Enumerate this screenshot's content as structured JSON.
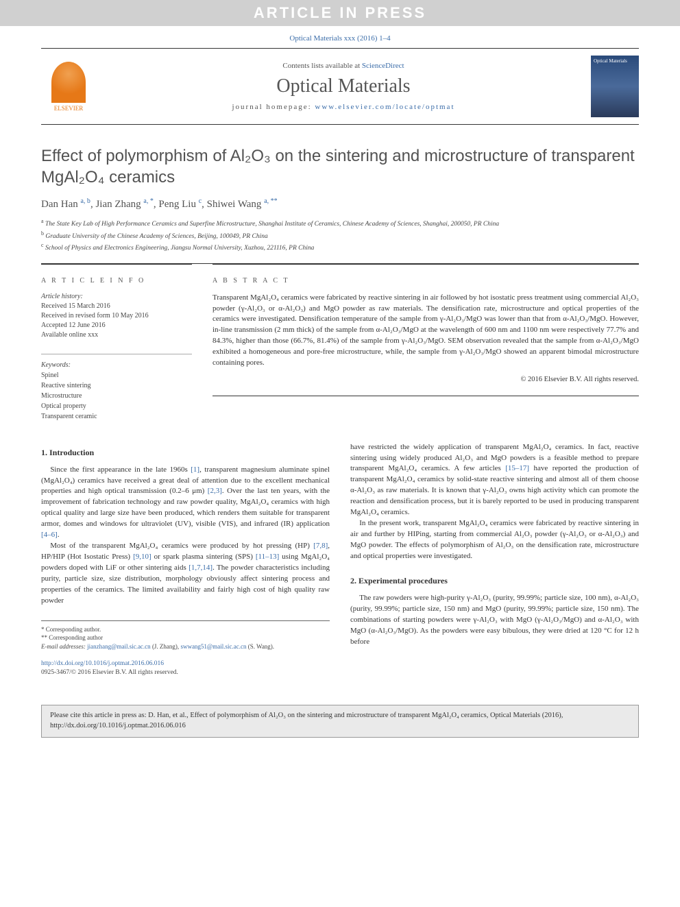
{
  "banner": "ARTICLE IN PRESS",
  "citation_line": "Optical Materials xxx (2016) 1–4",
  "header": {
    "contents_prefix": "Contents lists available at ",
    "contents_link": "ScienceDirect",
    "journal_name": "Optical Materials",
    "homepage_prefix": "journal homepage: ",
    "homepage_link": "www.elsevier.com/locate/optmat",
    "publisher": "ELSEVIER",
    "cover_text": "Optical Materials"
  },
  "title": "Effect of polymorphism of Al₂O₃ on the sintering and microstructure of transparent MgAl₂O₄ ceramics",
  "authors_html": "Dan Han <sup>a, b</sup>, Jian Zhang <sup>a, *</sup>, Peng Liu <sup>c</sup>, Shiwei Wang <sup>a, **</sup>",
  "affiliations": {
    "a": "The State Key Lab of High Performance Ceramics and Superfine Microstructure, Shanghai Institute of Ceramics, Chinese Academy of Sciences, Shanghai, 200050, PR China",
    "b": "Graduate University of the Chinese Academy of Sciences, Beijing, 100049, PR China",
    "c": "School of Physics and Electronics Engineering, Jiangsu Normal University, Xuzhou, 221116, PR China"
  },
  "info": {
    "section_label": "A R T I C L E  I N F O",
    "history_label": "Article history:",
    "received": "Received 15 March 2016",
    "revised": "Received in revised form 10 May 2016",
    "accepted": "Accepted 12 June 2016",
    "online": "Available online xxx",
    "keywords_label": "Keywords:",
    "keywords": [
      "Spinel",
      "Reactive sintering",
      "Microstructure",
      "Optical property",
      "Transparent ceramic"
    ]
  },
  "abstract": {
    "label": "A B S T R A C T",
    "text": "Transparent MgAl₂O₄ ceramics were fabricated by reactive sintering in air followed by hot isostatic press treatment using commercial Al₂O₃ powder (γ-Al₂O₃ or α-Al₂O₃) and MgO powder as raw materials. The densification rate, microstructure and optical properties of the ceramics were investigated. Densification temperature of the sample from γ-Al₂O₃/MgO was lower than that from α-Al₂O₃/MgO. However, in-line transmission (2 mm thick) of the sample from α-Al₂O₃/MgO at the wavelength of 600 nm and 1100 nm were respectively 77.7% and 84.3%, higher than those (66.7%, 81.4%) of the sample from γ-Al₂O₃/MgO. SEM observation revealed that the sample from α-Al₂O₃/MgO exhibited a homogeneous and pore-free microstructure, while, the sample from γ-Al₂O₃/MgO showed an apparent bimodal microstructure containing pores.",
    "copyright": "© 2016 Elsevier B.V. All rights reserved."
  },
  "sections": {
    "intro_heading": "1.  Introduction",
    "intro_p1": "Since the first appearance in the late 1960s [1], transparent magnesium aluminate spinel (MgAl₂O₄) ceramics have received a great deal of attention due to the excellent mechanical properties and high optical transmission (0.2–6 μm) [2,3]. Over the last ten years, with the improvement of fabrication technology and raw powder quality, MgAl₂O₄ ceramics with high optical quality and large size have been produced, which renders them suitable for transparent armor, domes and windows for ultraviolet (UV), visible (VIS), and infrared (IR) application [4–6].",
    "intro_p2": "Most of the transparent MgAl₂O₄ ceramics were produced by hot pressing (HP) [7,8], HP/HIP (Hot Isostatic Press) [9,10] or spark plasma sintering (SPS) [11–13] using MgAl₂O₄ powders doped with LiF or other sintering aids [1,7,14]. The powder characteristics including purity, particle size, size distribution, morphology obviously affect sintering process and properties of the ceramics. The limited availability and fairly high cost of high quality raw powder",
    "intro_p3": "have restricted the widely application of transparent MgAl₂O₄ ceramics. In fact, reactive sintering using widely produced Al₂O₃ and MgO powders is a feasible method to prepare transparent MgAl₂O₄ ceramics. A few articles [15–17] have reported the production of transparent MgAl₂O₄ ceramics by solid-state reactive sintering and almost all of them choose α-Al₂O₃ as raw materials. It is known that γ-Al₂O₃ owns high activity which can promote the reaction and densification process, but it is barely reported to be used in producing transparent MgAl₂O₄ ceramics.",
    "intro_p4": "In the present work, transparent MgAl₂O₄ ceramics were fabricated by reactive sintering in air and further by HIPing, starting from commercial Al₂O₃ powder (γ-Al₂O₃ or α-Al₂O₃) and MgO powder. The effects of polymorphism of Al₂O₃ on the densification rate, microstructure and optical properties were investigated.",
    "exp_heading": "2.  Experimental procedures",
    "exp_p1": "The raw powders were high-purity γ-Al₂O₃ (purity, 99.99%; particle size, 100 nm), α-Al₂O₃ (purity, 99.99%; particle size, 150 nm) and MgO (purity, 99.99%; particle size, 150 nm). The combinations of starting powders were γ-Al₂O₃ with MgO (γ-Al₂O₃/MgO) and α-Al₂O₃ with MgO (α-Al₂O₃/MgO). As the powders were easy bibulous, they were dried at 120 °C for 12 h before"
  },
  "footnotes": {
    "corr1": "* Corresponding author.",
    "corr2": "** Corresponding author",
    "email_label": "E-mail addresses:",
    "email1": "jianzhang@mail.sic.ac.cn",
    "email1_name": "(J. Zhang),",
    "email2": "swwang51@mail.sic.ac.cn",
    "email2_name": "(S. Wang)."
  },
  "doi": {
    "link": "http://dx.doi.org/10.1016/j.optmat.2016.06.016",
    "issn": "0925-3467/© 2016 Elsevier B.V. All rights reserved."
  },
  "cite_box": "Please cite this article in press as: D. Han, et al., Effect of polymorphism of Al₂O₃ on the sintering and microstructure of transparent MgAl₂O₄ ceramics, Optical Materials (2016), http://dx.doi.org/10.1016/j.optmat.2016.06.016",
  "refs": {
    "r1": "[1]",
    "r23": "[2,3]",
    "r46": "[4–6]",
    "r78": "[7,8]",
    "r910": "[9,10]",
    "r1113": "[11–13]",
    "r1714": "[1,7,14]",
    "r1517": "[15–17]"
  },
  "colors": {
    "banner_bg": "#d0d0d0",
    "link": "#3a6ca8",
    "elsevier_orange": "#e67817",
    "text": "#333333",
    "heading": "#525252"
  }
}
